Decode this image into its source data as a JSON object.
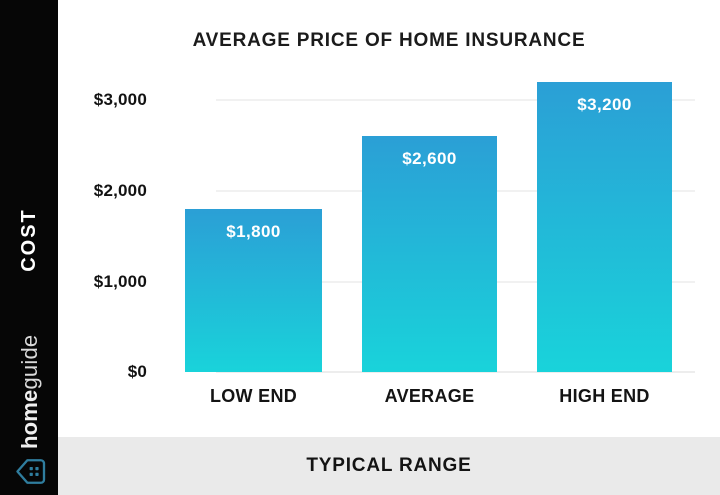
{
  "sidebar": {
    "cost_label": "COST",
    "brand": {
      "home": "home",
      "guide": "guide"
    },
    "icon": "house-icon",
    "icon_color": "#2f7d9e",
    "background": "#060606"
  },
  "chart_data": {
    "type": "bar",
    "title": "AVERAGE PRICE OF HOME INSURANCE",
    "categories": [
      "LOW END",
      "AVERAGE",
      "HIGH END"
    ],
    "values": [
      1800,
      2600,
      3200
    ],
    "value_labels": [
      "$1,800",
      "$2,600",
      "$3,200"
    ],
    "y_ticks": [
      "$3,000",
      "$2,000",
      "$1,000",
      "$0"
    ],
    "y_tick_values": [
      3000,
      2000,
      1000,
      0
    ],
    "ylim": [
      0,
      3300
    ],
    "xlabel": "",
    "ylabel": "COST",
    "grid": true,
    "legend": false,
    "bar_color_top": "#2b9fd6",
    "bar_color_bottom": "#19d3da",
    "label_color": "#ffffff",
    "annotation": "TYPICAL RANGE"
  },
  "footer": {
    "label": "TYPICAL RANGE",
    "background": "#eaeaea"
  }
}
